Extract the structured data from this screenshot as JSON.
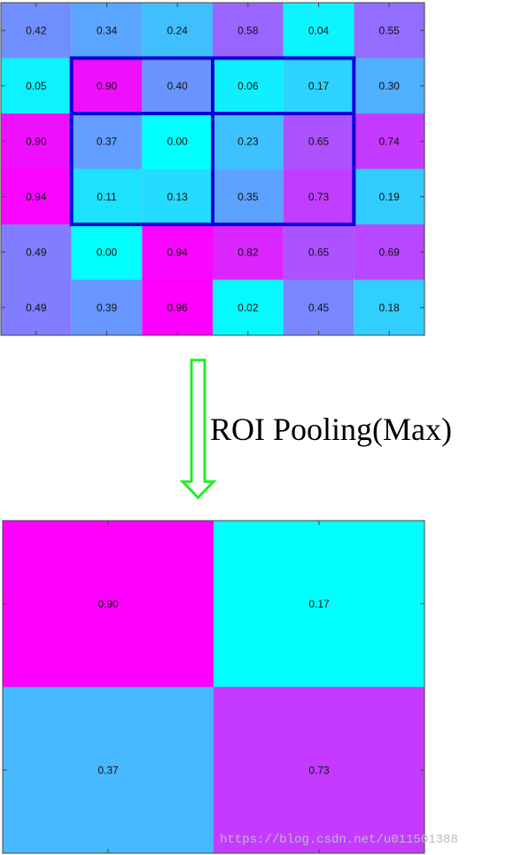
{
  "input_grid": {
    "rows": [
      [
        0.42,
        0.34,
        0.24,
        0.58,
        0.04,
        0.55
      ],
      [
        0.05,
        0.9,
        0.4,
        0.06,
        0.17,
        0.3
      ],
      [
        0.9,
        0.37,
        0.0,
        0.23,
        0.65,
        0.74
      ],
      [
        0.94,
        0.11,
        0.13,
        0.35,
        0.73,
        0.19
      ],
      [
        0.49,
        0.0,
        0.94,
        0.82,
        0.65,
        0.69
      ],
      [
        0.49,
        0.39,
        0.96,
        0.02,
        0.45,
        0.18
      ]
    ],
    "roi": {
      "row_start": 1,
      "row_end": 3,
      "col_start": 1,
      "col_end": 4,
      "row_split": 2,
      "col_split": 3
    }
  },
  "output_grid": {
    "rows": [
      [
        0.9,
        0.17
      ],
      [
        0.37,
        0.73
      ]
    ]
  },
  "colors": {
    "cool_low": "#00ffff",
    "cool_high": "#ff00ff",
    "roi_border": "#0a00dc",
    "arrow": "#22ee22",
    "axis": "#444444"
  },
  "caption": "ROI Pooling(Max)",
  "watermark": "https://blog.csdn.net/u011501388"
}
